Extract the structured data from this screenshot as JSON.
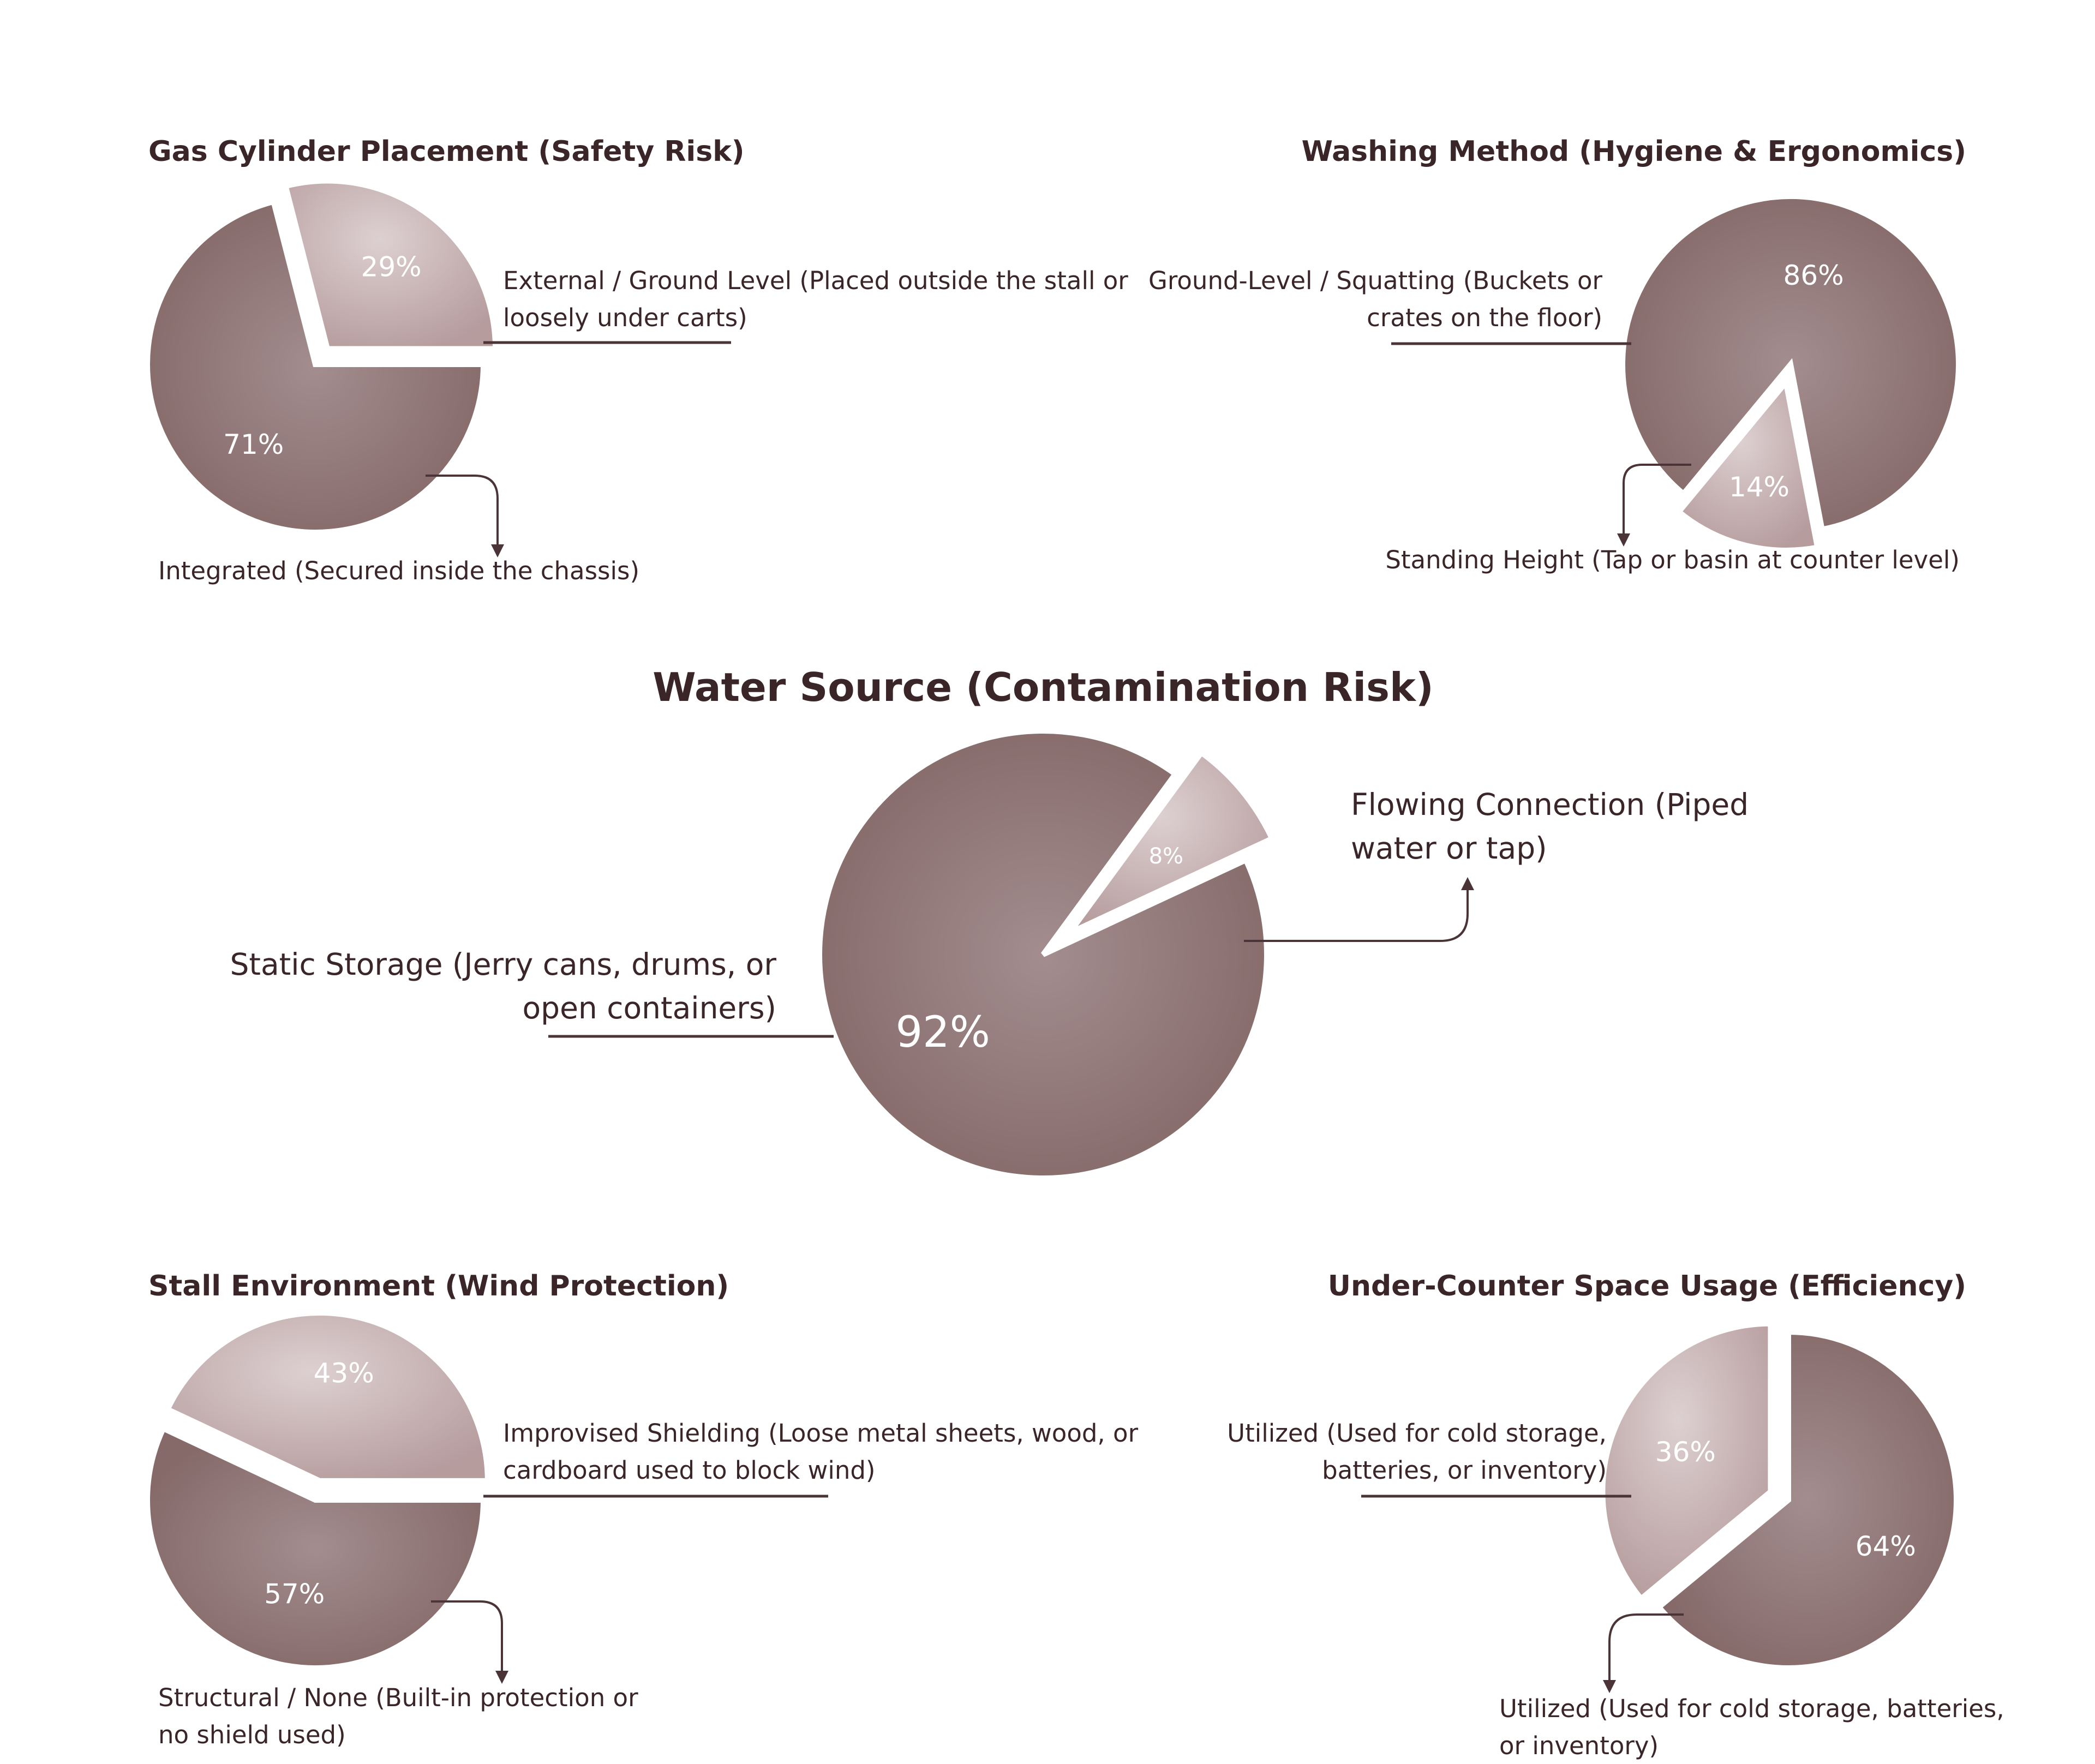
{
  "colors": {
    "dark": "#8e7070",
    "light": "#bfa7a8",
    "text": "#3a2528",
    "line": "#4a3437"
  },
  "chart_data": [
    {
      "type": "pie",
      "title": "Gas Cylinder Placement (Safety Risk)",
      "slices": [
        {
          "label": "External / Ground Level (Placed outside the stall or loosely under carts)",
          "lines": [
            "External / Ground Level (Placed outside the stall or",
            "loosely under carts)"
          ],
          "value": 71,
          "value_label": "71%"
        },
        {
          "label": "Integrated (Secured inside the chassis)",
          "lines": [
            "Integrated (Secured inside the chassis)"
          ],
          "value": 29,
          "value_label": "29%"
        }
      ]
    },
    {
      "type": "pie",
      "title": "Washing Method (Hygiene & Ergonomics)",
      "slices": [
        {
          "label": "Ground-Level / Squatting (Buckets or crates on the floor)",
          "lines": [
            "Ground-Level / Squatting (Buckets or",
            "crates on the floor)"
          ],
          "value": 86,
          "value_label": "86%"
        },
        {
          "label": "Standing Height (Tap or basin at counter level)",
          "lines": [
            "Standing Height (Tap or basin at counter level)"
          ],
          "value": 14,
          "value_label": "14%"
        }
      ]
    },
    {
      "type": "pie",
      "title": "Water Source (Contamination Risk)",
      "slices": [
        {
          "label": "Static Storage (Jerry cans, drums, or open containers)",
          "lines": [
            "Static Storage (Jerry cans, drums, or",
            "open containers)"
          ],
          "value": 92,
          "value_label": "92%"
        },
        {
          "label": "Flowing Connection (Piped water or tap)",
          "lines": [
            "Flowing Connection (Piped",
            "water or tap)"
          ],
          "value": 8,
          "value_label": "8%"
        }
      ]
    },
    {
      "type": "pie",
      "title": "Stall Environment (Wind Protection)",
      "slices": [
        {
          "label": "Improvised Shielding (Loose metal sheets, wood, or cardboard used to block wind)",
          "lines": [
            "Improvised Shielding (Loose metal sheets, wood, or",
            "cardboard used to block wind)"
          ],
          "value": 57,
          "value_label": "57%"
        },
        {
          "label": "Structural / None (Built-in protection or no shield used)",
          "lines": [
            "Structural / None (Built-in protection or",
            "no shield used)"
          ],
          "value": 43,
          "value_label": "43%"
        }
      ]
    },
    {
      "type": "pie",
      "title": "Under-Counter Space Usage (Efficiency)",
      "slices": [
        {
          "label": "Utilized (Used for cold storage, batteries, or inventory)",
          "lines": [
            "Utilized (Used for cold storage,",
            "batteries, or inventory)"
          ],
          "value": 64,
          "value_label": "64%"
        },
        {
          "label": "Utilized (Used for cold storage, batteries, or inventory)",
          "lines": [
            "Utilized (Used for cold storage, batteries,",
            "or inventory)"
          ],
          "value": 36,
          "value_label": "36%"
        }
      ]
    }
  ]
}
